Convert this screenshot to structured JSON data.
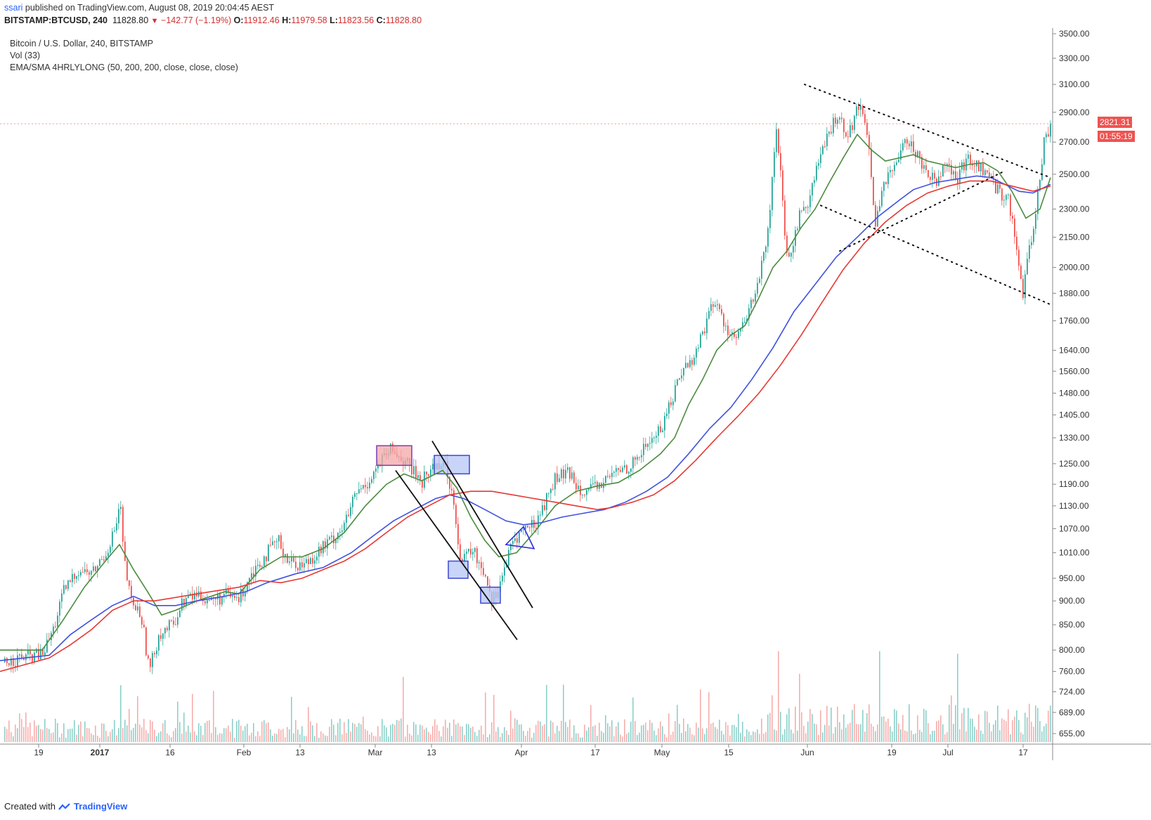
{
  "header": {
    "user": "ssari",
    "published_text": " published on TradingView.com, August 08, 2019 20:04:45 AEST",
    "symbol": "BITSTAMP:BTCUSD, 240",
    "last": "11828.80",
    "change": "−142.77 (−1.19%)",
    "o_label": "O:",
    "o_value": "11912.46",
    "h_label": "H:",
    "h_value": "11979.58",
    "l_label": "L:",
    "l_value": "11823.56",
    "c_label": "C:",
    "c_value": "11828.80"
  },
  "legend": {
    "title": "Bitcoin / U.S. Dollar, 240, BITSTAMP",
    "vol": "Vol (33)",
    "indicator": "EMA/SMA 4HRLYLONG (50, 200, 200, close, close, close)"
  },
  "price_tags": {
    "price": "2821.31",
    "timer": "01:55:19"
  },
  "footer": {
    "created_with": "Created with",
    "brand": "TradingView"
  },
  "colors": {
    "up": "#26a69a",
    "down": "#ef5350",
    "vol_up": "#80cbc4",
    "vol_down": "#f5a5a3",
    "ema_short": "#4c8b3f",
    "sma_long": "#3f51e0",
    "ema_long": "#e53935",
    "last_price": "#ef5350",
    "resistance_box": "#f4a7a7",
    "support_box": "#b5c6f5"
  },
  "chart_data": {
    "type": "candlestick",
    "scale": "log",
    "y_ticks": [
      3500,
      3300,
      3100,
      2900,
      2700,
      2500,
      2300,
      2150,
      2000,
      1880,
      1760,
      1640,
      1560,
      1480,
      1405,
      1330,
      1250,
      1190,
      1130,
      1070,
      1010,
      950,
      900,
      850,
      800,
      760,
      724,
      689,
      655
    ],
    "y_tick_labels": [
      "3500.00",
      "3300.00",
      "3100.00",
      "2900.00",
      "2700.00",
      "2500.00",
      "2300.00",
      "2150.00",
      "2000.00",
      "1880.00",
      "1760.00",
      "1640.00",
      "1560.00",
      "1480.00",
      "1405.00",
      "1330.00",
      "1250.00",
      "1190.00",
      "1130.00",
      "1070.00",
      "1010.00",
      "950.00",
      "900.00",
      "850.00",
      "800.00",
      "760.00",
      "724.00",
      "689.00",
      "655.00"
    ],
    "x_ticks": [
      {
        "label": "19",
        "bold": false,
        "x": 55
      },
      {
        "label": "2017",
        "bold": true,
        "x": 142
      },
      {
        "label": "16",
        "bold": false,
        "x": 242
      },
      {
        "label": "Feb",
        "bold": false,
        "x": 347
      },
      {
        "label": "13",
        "bold": false,
        "x": 427
      },
      {
        "label": "Mar",
        "bold": false,
        "x": 534
      },
      {
        "label": "13",
        "bold": false,
        "x": 614
      },
      {
        "label": "Apr",
        "bold": false,
        "x": 742
      },
      {
        "label": "17",
        "bold": false,
        "x": 847
      },
      {
        "label": "May",
        "bold": false,
        "x": 942
      },
      {
        "label": "15",
        "bold": false,
        "x": 1037
      },
      {
        "label": "Jun",
        "bold": false,
        "x": 1149
      },
      {
        "label": "19",
        "bold": false,
        "x": 1269
      },
      {
        "label": "Jul",
        "bold": false,
        "x": 1349
      },
      {
        "label": "17",
        "bold": false,
        "x": 1456
      }
    ],
    "price_path": [
      [
        0,
        775
      ],
      [
        30,
        785
      ],
      [
        60,
        792
      ],
      [
        75,
        840
      ],
      [
        90,
        920
      ],
      [
        110,
        970
      ],
      [
        130,
        960
      ],
      [
        150,
        1010
      ],
      [
        165,
        1080
      ],
      [
        170,
        1145
      ],
      [
        175,
        1000
      ],
      [
        185,
        900
      ],
      [
        200,
        870
      ],
      [
        212,
        760
      ],
      [
        225,
        830
      ],
      [
        245,
        850
      ],
      [
        260,
        900
      ],
      [
        280,
        915
      ],
      [
        300,
        900
      ],
      [
        320,
        910
      ],
      [
        340,
        905
      ],
      [
        355,
        960
      ],
      [
        375,
        1000
      ],
      [
        395,
        1040
      ],
      [
        410,
        990
      ],
      [
        430,
        980
      ],
      [
        450,
        1010
      ],
      [
        470,
        1040
      ],
      [
        490,
        1080
      ],
      [
        505,
        1160
      ],
      [
        520,
        1190
      ],
      [
        540,
        1250
      ],
      [
        555,
        1290
      ],
      [
        570,
        1270
      ],
      [
        585,
        1230
      ],
      [
        600,
        1200
      ],
      [
        615,
        1240
      ],
      [
        630,
        1260
      ],
      [
        645,
        1150
      ],
      [
        655,
        980
      ],
      [
        670,
        1020
      ],
      [
        690,
        960
      ],
      [
        700,
        900
      ],
      [
        715,
        960
      ],
      [
        730,
        1040
      ],
      [
        745,
        1070
      ],
      [
        760,
        1080
      ],
      [
        775,
        1140
      ],
      [
        790,
        1210
      ],
      [
        810,
        1220
      ],
      [
        825,
        1180
      ],
      [
        840,
        1170
      ],
      [
        860,
        1200
      ],
      [
        880,
        1230
      ],
      [
        900,
        1250
      ],
      [
        920,
        1310
      ],
      [
        940,
        1360
      ],
      [
        955,
        1460
      ],
      [
        970,
        1570
      ],
      [
        985,
        1600
      ],
      [
        1000,
        1720
      ],
      [
        1015,
        1850
      ],
      [
        1030,
        1750
      ],
      [
        1045,
        1680
      ],
      [
        1060,
        1750
      ],
      [
        1075,
        1900
      ],
      [
        1090,
        2100
      ],
      [
        1105,
        2800
      ],
      [
        1115,
        2200
      ],
      [
        1120,
        2000
      ],
      [
        1135,
        2250
      ],
      [
        1150,
        2350
      ],
      [
        1165,
        2600
      ],
      [
        1180,
        2750
      ],
      [
        1190,
        2900
      ],
      [
        1205,
        2750
      ],
      [
        1225,
        2980
      ],
      [
        1235,
        2700
      ],
      [
        1245,
        2200
      ],
      [
        1255,
        2450
      ],
      [
        1270,
        2500
      ],
      [
        1285,
        2750
      ],
      [
        1300,
        2650
      ],
      [
        1315,
        2550
      ],
      [
        1330,
        2450
      ],
      [
        1345,
        2600
      ],
      [
        1360,
        2450
      ],
      [
        1375,
        2600
      ],
      [
        1390,
        2550
      ],
      [
        1405,
        2500
      ],
      [
        1420,
        2400
      ],
      [
        1435,
        2350
      ],
      [
        1445,
        2100
      ],
      [
        1455,
        1880
      ],
      [
        1465,
        2100
      ],
      [
        1475,
        2350
      ],
      [
        1485,
        2700
      ],
      [
        1495,
        2821
      ]
    ],
    "ma_series": [
      {
        "name": "EMA 50",
        "color_key": "ema_short",
        "points": [
          [
            0,
            800
          ],
          [
            60,
            800
          ],
          [
            90,
            860
          ],
          [
            120,
            930
          ],
          [
            150,
            990
          ],
          [
            170,
            1030
          ],
          [
            190,
            970
          ],
          [
            210,
            920
          ],
          [
            230,
            870
          ],
          [
            250,
            880
          ],
          [
            280,
            900
          ],
          [
            320,
            920
          ],
          [
            340,
            915
          ],
          [
            370,
            970
          ],
          [
            400,
            1000
          ],
          [
            430,
            1000
          ],
          [
            460,
            1020
          ],
          [
            490,
            1060
          ],
          [
            520,
            1130
          ],
          [
            550,
            1190
          ],
          [
            575,
            1220
          ],
          [
            600,
            1200
          ],
          [
            630,
            1230
          ],
          [
            650,
            1180
          ],
          [
            670,
            1100
          ],
          [
            690,
            1040
          ],
          [
            710,
            1000
          ],
          [
            735,
            1010
          ],
          [
            760,
            1060
          ],
          [
            790,
            1130
          ],
          [
            820,
            1170
          ],
          [
            850,
            1185
          ],
          [
            880,
            1195
          ],
          [
            910,
            1230
          ],
          [
            940,
            1280
          ],
          [
            960,
            1330
          ],
          [
            980,
            1440
          ],
          [
            1000,
            1530
          ],
          [
            1020,
            1640
          ],
          [
            1040,
            1700
          ],
          [
            1060,
            1740
          ],
          [
            1080,
            1860
          ],
          [
            1100,
            2000
          ],
          [
            1120,
            2080
          ],
          [
            1140,
            2200
          ],
          [
            1160,
            2300
          ],
          [
            1180,
            2450
          ],
          [
            1200,
            2600
          ],
          [
            1220,
            2750
          ],
          [
            1240,
            2650
          ],
          [
            1260,
            2580
          ],
          [
            1280,
            2600
          ],
          [
            1300,
            2620
          ],
          [
            1320,
            2580
          ],
          [
            1340,
            2560
          ],
          [
            1360,
            2540
          ],
          [
            1380,
            2560
          ],
          [
            1400,
            2570
          ],
          [
            1420,
            2520
          ],
          [
            1440,
            2400
          ],
          [
            1460,
            2250
          ],
          [
            1480,
            2300
          ],
          [
            1495,
            2480
          ]
        ]
      },
      {
        "name": "SMA 200",
        "color_key": "sma_long",
        "points": [
          [
            0,
            780
          ],
          [
            70,
            790
          ],
          [
            100,
            830
          ],
          [
            130,
            860
          ],
          [
            160,
            890
          ],
          [
            190,
            910
          ],
          [
            220,
            890
          ],
          [
            250,
            890
          ],
          [
            280,
            900
          ],
          [
            320,
            910
          ],
          [
            350,
            920
          ],
          [
            380,
            940
          ],
          [
            420,
            960
          ],
          [
            460,
            975
          ],
          [
            500,
            1010
          ],
          [
            530,
            1050
          ],
          [
            560,
            1090
          ],
          [
            590,
            1120
          ],
          [
            620,
            1150
          ],
          [
            640,
            1160
          ],
          [
            660,
            1150
          ],
          [
            690,
            1120
          ],
          [
            720,
            1090
          ],
          [
            745,
            1080
          ],
          [
            770,
            1085
          ],
          [
            800,
            1100
          ],
          [
            830,
            1110
          ],
          [
            860,
            1120
          ],
          [
            890,
            1140
          ],
          [
            920,
            1170
          ],
          [
            950,
            1210
          ],
          [
            980,
            1280
          ],
          [
            1010,
            1360
          ],
          [
            1040,
            1430
          ],
          [
            1070,
            1530
          ],
          [
            1100,
            1650
          ],
          [
            1130,
            1800
          ],
          [
            1160,
            1920
          ],
          [
            1190,
            2050
          ],
          [
            1220,
            2150
          ],
          [
            1250,
            2260
          ],
          [
            1280,
            2350
          ],
          [
            1300,
            2410
          ],
          [
            1330,
            2450
          ],
          [
            1360,
            2470
          ],
          [
            1390,
            2490
          ],
          [
            1410,
            2480
          ],
          [
            1430,
            2440
          ],
          [
            1450,
            2400
          ],
          [
            1470,
            2390
          ],
          [
            1495,
            2440
          ]
        ]
      },
      {
        "name": "EMA 200",
        "color_key": "ema_long",
        "points": [
          [
            0,
            760
          ],
          [
            70,
            785
          ],
          [
            100,
            810
          ],
          [
            130,
            840
          ],
          [
            160,
            880
          ],
          [
            190,
            900
          ],
          [
            220,
            900
          ],
          [
            260,
            910
          ],
          [
            300,
            920
          ],
          [
            340,
            930
          ],
          [
            370,
            945
          ],
          [
            400,
            940
          ],
          [
            430,
            950
          ],
          [
            460,
            970
          ],
          [
            490,
            990
          ],
          [
            520,
            1020
          ],
          [
            550,
            1060
          ],
          [
            580,
            1100
          ],
          [
            610,
            1130
          ],
          [
            640,
            1160
          ],
          [
            670,
            1170
          ],
          [
            700,
            1170
          ],
          [
            730,
            1160
          ],
          [
            760,
            1150
          ],
          [
            790,
            1140
          ],
          [
            820,
            1130
          ],
          [
            850,
            1120
          ],
          [
            870,
            1125
          ],
          [
            900,
            1140
          ],
          [
            930,
            1160
          ],
          [
            960,
            1200
          ],
          [
            990,
            1260
          ],
          [
            1020,
            1330
          ],
          [
            1050,
            1400
          ],
          [
            1080,
            1480
          ],
          [
            1110,
            1580
          ],
          [
            1140,
            1700
          ],
          [
            1170,
            1840
          ],
          [
            1200,
            1990
          ],
          [
            1230,
            2120
          ],
          [
            1260,
            2230
          ],
          [
            1290,
            2320
          ],
          [
            1320,
            2390
          ],
          [
            1350,
            2430
          ],
          [
            1380,
            2460
          ],
          [
            1410,
            2460
          ],
          [
            1440,
            2430
          ],
          [
            1470,
            2400
          ],
          [
            1495,
            2430
          ]
        ]
      }
    ],
    "annotations": {
      "boxes": [
        {
          "kind": "resistance",
          "x1": 536,
          "x2": 586,
          "y1": 1245,
          "y2": 1305
        },
        {
          "kind": "support",
          "x1": 618,
          "x2": 668,
          "y1": 1220,
          "y2": 1275
        },
        {
          "kind": "support",
          "x1": 638,
          "x2": 666,
          "y1": 950,
          "y2": 990
        },
        {
          "kind": "support",
          "x1": 684,
          "x2": 712,
          "y1": 895,
          "y2": 930
        }
      ],
      "solid_lines": [
        [
          [
            563,
            1230
          ],
          [
            736,
            820
          ]
        ],
        [
          [
            615,
            1320
          ],
          [
            758,
            885
          ]
        ]
      ],
      "triangle": [
        [
          720,
          1030
        ],
        [
          745,
          1075
        ],
        [
          760,
          1020
        ]
      ],
      "dotted_lines": [
        [
          [
            1145,
            3100
          ],
          [
            1495,
            2480
          ]
        ],
        [
          [
            1168,
            2320
          ],
          [
            1495,
            1830
          ]
        ],
        [
          [
            1195,
            2080
          ],
          [
            1430,
            2520
          ]
        ]
      ]
    }
  }
}
